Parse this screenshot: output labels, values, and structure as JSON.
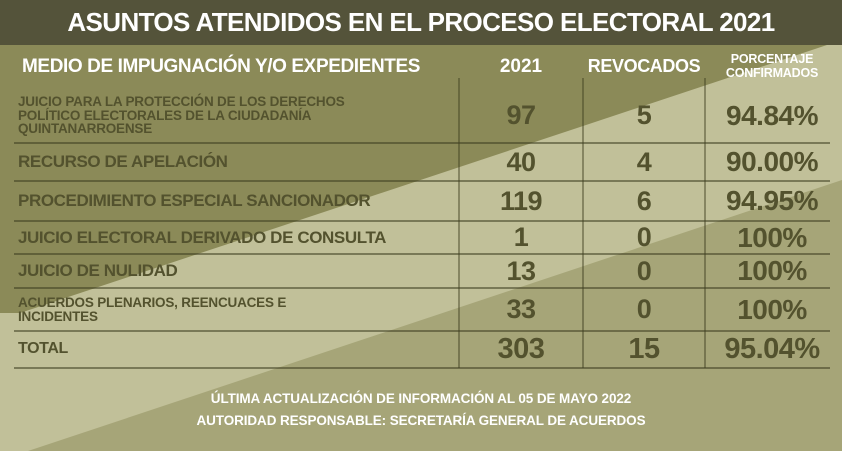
{
  "title": "ASUNTOS ATENDIDOS EN EL PROCESO ELECTORAL 2021",
  "table": {
    "headers": {
      "medio": "MEDIO DE IMPUGNACIÓN Y/O EXPEDIENTES",
      "year": "2021",
      "revocados": "REVOCADOS",
      "porcentaje_line1": "PORCENTAJE",
      "porcentaje_line2": "CONFIRMADOS"
    },
    "rows": [
      {
        "label": "JUICIO PARA LA PROTECCIÓN DE LOS DERECHOS\nPOLÍTICO ELECTORALES DE LA CIUDADANÍA\nQUINTANARROENSE",
        "y2021": "97",
        "revocados": "5",
        "porcentaje": "94.84%"
      },
      {
        "label": "RECURSO DE APELACIÓN",
        "y2021": "40",
        "revocados": "4",
        "porcentaje": "90.00%"
      },
      {
        "label": "PROCEDIMIENTO ESPECIAL SANCIONADOR",
        "y2021": "119",
        "revocados": "6",
        "porcentaje": "94.95%"
      },
      {
        "label": "JUICIO ELECTORAL DERIVADO DE CONSULTA",
        "y2021": "1",
        "revocados": "0",
        "porcentaje": "100%"
      },
      {
        "label": "JUICIO DE NULIDAD",
        "y2021": "13",
        "revocados": "0",
        "porcentaje": "100%"
      },
      {
        "label": "ACUERDOS PLENARIOS, REENCUACES E\nINCIDENTES",
        "y2021": "33",
        "revocados": "0",
        "porcentaje": "100%"
      },
      {
        "label": "TOTAL",
        "y2021": "303",
        "revocados": "15",
        "porcentaje": "95.04%"
      }
    ]
  },
  "footer": {
    "line1": "ÚLTIMA ACTUALIZACIÓN DE INFORMACIÓN AL 05 DE MAYO 2022",
    "line2": "AUTORIDAD RESPONSABLE: SECRETARÍA GENERAL DE ACUERDOS"
  },
  "colors": {
    "title-bar": "#54533a",
    "band-dark": "#8b8a58",
    "band-light": "#c1c099",
    "band-base": "#a6a578",
    "ink": "#53522e"
  },
  "chart_data": {
    "type": "table",
    "title": "ASUNTOS ATENDIDOS EN EL PROCESO ELECTORAL 2021",
    "columns": [
      "MEDIO DE IMPUGNACIÓN Y/O EXPEDIENTES",
      "2021",
      "REVOCADOS",
      "PORCENTAJE CONFIRMADOS"
    ],
    "rows": [
      [
        "JUICIO PARA LA PROTECCIÓN DE LOS DERECHOS POLÍTICO ELECTORALES DE LA CIUDADANÍA QUINTANARROENSE",
        97,
        5,
        "94.84%"
      ],
      [
        "RECURSO DE APELACIÓN",
        40,
        4,
        "90.00%"
      ],
      [
        "PROCEDIMIENTO ESPECIAL SANCIONADOR",
        119,
        6,
        "94.95%"
      ],
      [
        "JUICIO ELECTORAL DERIVADO DE CONSULTA",
        1,
        0,
        "100%"
      ],
      [
        "JUICIO DE NULIDAD",
        13,
        0,
        "100%"
      ],
      [
        "ACUERDOS PLENARIOS, REENCUACES E INCIDENTES",
        33,
        0,
        "100%"
      ],
      [
        "TOTAL",
        303,
        15,
        "95.04%"
      ]
    ]
  }
}
